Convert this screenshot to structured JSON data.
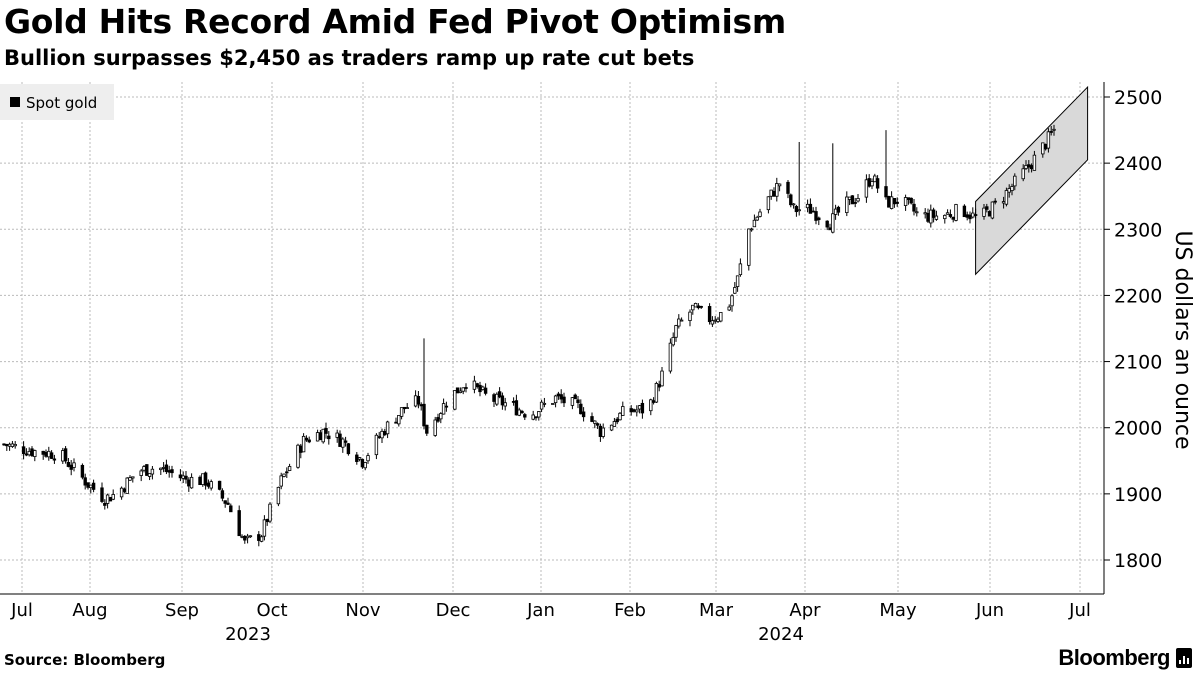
{
  "header": {
    "title": "Gold Hits Record Amid Fed Pivot Optimism",
    "subtitle": "Bullion surpasses $2,450 as traders ramp up rate cut bets"
  },
  "footer": {
    "source": "Source: Bloomberg",
    "brand": "Bloomberg"
  },
  "colors": {
    "candle": "#000000",
    "grid": "#bbbbbb",
    "channel_fill": "#d9d9d9",
    "legend_bg": "#eeeeee"
  },
  "chart_data": {
    "type": "candlestick",
    "title": "Gold Hits Record Amid Fed Pivot Optimism",
    "subtitle": "Bullion surpasses $2,450 as traders ramp up rate cut bets",
    "ylabel": "US dollars an ounce",
    "y_ticks": [
      1800,
      1900,
      2000,
      2100,
      2200,
      2300,
      2400,
      2500
    ],
    "ylim": [
      1750,
      2520
    ],
    "x_month_labels": [
      "Jul",
      "Aug",
      "Sep",
      "Oct",
      "Nov",
      "Dec",
      "Jan",
      "Feb",
      "Mar",
      "Apr",
      "May",
      "Jun",
      "Jul"
    ],
    "x_year_labels": [
      {
        "label": "2023",
        "month_index": 3
      },
      {
        "label": "2024",
        "month_index": 9
      }
    ],
    "legend": [
      "Spot gold"
    ],
    "legend_position": "top-left",
    "grid": true,
    "annotation": {
      "type": "rising channel",
      "start_day": 347,
      "end_day": 387,
      "start_range": [
        2232,
        2342
      ],
      "end_range": [
        2405,
        2515
      ]
    },
    "series": [
      {
        "name": "Spot gold",
        "anchors": [
          [
            0,
            1975
          ],
          [
            10,
            1965
          ],
          [
            20,
            1960
          ],
          [
            30,
            1915
          ],
          [
            36,
            1893
          ],
          [
            40,
            1900
          ],
          [
            48,
            1935
          ],
          [
            55,
            1940
          ],
          [
            65,
            1922
          ],
          [
            72,
            1920
          ],
          [
            80,
            1885
          ],
          [
            86,
            1825
          ],
          [
            92,
            1840
          ],
          [
            99,
            1920
          ],
          [
            107,
            1980
          ],
          [
            114,
            1995
          ],
          [
            121,
            1980
          ],
          [
            128,
            1950
          ],
          [
            136,
            1998
          ],
          [
            143,
            2030
          ],
          [
            148,
            2040
          ],
          [
            151,
            1995
          ],
          [
            158,
            2040
          ],
          [
            165,
            2070
          ],
          [
            173,
            2045
          ],
          [
            180,
            2035
          ],
          [
            188,
            2020
          ],
          [
            197,
            2045
          ],
          [
            206,
            2030
          ],
          [
            213,
            1995
          ],
          [
            222,
            2025
          ],
          [
            230,
            2028
          ],
          [
            236,
            2090
          ],
          [
            240,
            2150
          ],
          [
            246,
            2180
          ],
          [
            252,
            2165
          ],
          [
            258,
            2175
          ],
          [
            262,
            2225
          ],
          [
            266,
            2300
          ],
          [
            272,
            2340
          ],
          [
            277,
            2370
          ],
          [
            282,
            2330
          ],
          [
            288,
            2330
          ],
          [
            295,
            2310
          ],
          [
            300,
            2335
          ],
          [
            305,
            2350
          ],
          [
            310,
            2380
          ],
          [
            315,
            2340
          ],
          [
            320,
            2345
          ],
          [
            327,
            2320
          ],
          [
            335,
            2320
          ],
          [
            342,
            2330
          ],
          [
            348,
            2315
          ],
          [
            355,
            2340
          ],
          [
            360,
            2365
          ],
          [
            366,
            2395
          ],
          [
            372,
            2430
          ],
          [
            375,
            2450
          ]
        ]
      }
    ]
  }
}
